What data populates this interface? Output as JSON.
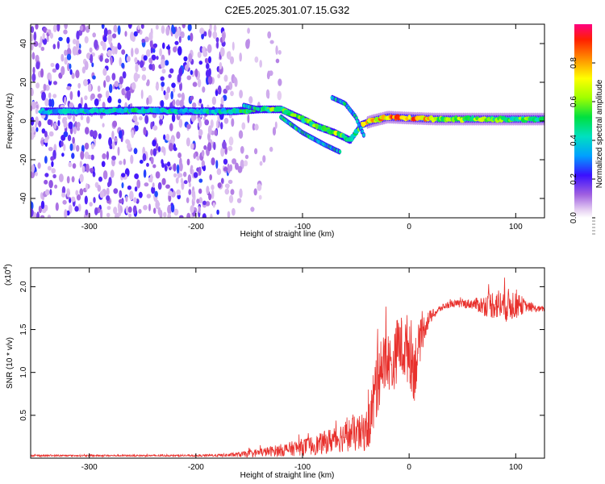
{
  "title": "C2E5.2025.301.07.15.G32",
  "chart_data": [
    {
      "type": "heatmap",
      "xlabel": "Height of straight line (km)",
      "ylabel": "Frequency (Hz)",
      "xlim": [
        -355,
        127
      ],
      "ylim": [
        -50,
        50
      ],
      "xticks": [
        -300,
        -200,
        -100,
        0,
        100
      ],
      "yticks": [
        -40,
        -20,
        0,
        20,
        40
      ],
      "colorbar": {
        "label": "Normalized spectral amplitude",
        "range": [
          0,
          1
        ],
        "ticks": [
          "0.0",
          "0.2",
          "0.4",
          "0.6",
          "0.8"
        ],
        "tick_values": [
          0.0,
          0.2,
          0.4,
          0.6,
          0.8
        ]
      },
      "dominant_track": [
        {
          "x": -345,
          "y": 5,
          "amp": 0.35
        },
        {
          "x": -300,
          "y": 5,
          "amp": 0.38
        },
        {
          "x": -250,
          "y": 5.5,
          "amp": 0.42
        },
        {
          "x": -200,
          "y": 5,
          "amp": 0.38
        },
        {
          "x": -165,
          "y": 5,
          "amp": 0.4
        },
        {
          "x": -140,
          "y": 6,
          "amp": 0.55
        },
        {
          "x": -120,
          "y": 6,
          "amp": 0.5
        },
        {
          "x": -100,
          "y": 1,
          "amp": 0.5
        },
        {
          "x": -85,
          "y": -3,
          "amp": 0.55
        },
        {
          "x": -70,
          "y": -6,
          "amp": 0.6
        },
        {
          "x": -55,
          "y": -10,
          "amp": 0.45
        },
        {
          "x": -45,
          "y": -2,
          "amp": 0.55
        },
        {
          "x": -35,
          "y": 0,
          "amp": 0.75
        },
        {
          "x": -20,
          "y": 2,
          "amp": 0.8
        },
        {
          "x": 0,
          "y": 1.5,
          "amp": 0.85
        },
        {
          "x": 25,
          "y": 1,
          "amp": 0.6
        },
        {
          "x": 50,
          "y": 1,
          "amp": 0.55
        },
        {
          "x": 75,
          "y": 1,
          "amp": 0.55
        },
        {
          "x": 100,
          "y": 1,
          "amp": 0.5
        },
        {
          "x": 127,
          "y": 1,
          "amp": 0.55
        }
      ],
      "secondary_tracks": [
        [
          {
            "x": -120,
            "y": 2
          },
          {
            "x": -100,
            "y": -6
          },
          {
            "x": -80,
            "y": -12
          },
          {
            "x": -65,
            "y": -16
          }
        ],
        [
          {
            "x": -72,
            "y": 12
          },
          {
            "x": -60,
            "y": 9
          },
          {
            "x": -50,
            "y": 2
          },
          {
            "x": -42,
            "y": -8
          }
        ],
        [
          {
            "x": -155,
            "y": 8
          },
          {
            "x": -140,
            "y": 6
          }
        ]
      ]
    },
    {
      "type": "line",
      "xlabel": "Height of straight line (km)",
      "ylabel": "SNR (10 * v/v)",
      "yexp_label": "(x10",
      "yexp_power": "4",
      "yexp_close": ")",
      "xlim": [
        -355,
        127
      ],
      "ylim": [
        0,
        2.22
      ],
      "xticks": [
        -300,
        -200,
        -100,
        0,
        100
      ],
      "yticks": [
        0.5,
        1.0,
        1.5,
        2.0
      ],
      "ytick_labels": [
        "0.5",
        "1.0",
        "1.5",
        "2.0"
      ],
      "color": "#e8302c",
      "series": [
        {
          "x": [
            -355,
            -300,
            -250,
            -200,
            -170,
            -150,
            -130,
            -115,
            -100,
            -85,
            -70,
            -55,
            -45,
            -38,
            -32,
            -28,
            -25,
            -20,
            -15,
            -10,
            -5,
            0,
            5,
            10,
            15,
            20,
            25,
            30,
            35,
            40,
            50,
            60,
            70,
            80,
            90,
            100,
            110,
            120,
            127
          ],
          "y": [
            0.03,
            0.03,
            0.03,
            0.03,
            0.035,
            0.05,
            0.08,
            0.1,
            0.13,
            0.16,
            0.22,
            0.28,
            0.28,
            0.35,
            0.75,
            1.15,
            1.05,
            1.15,
            1.05,
            1.35,
            1.25,
            1.3,
            1.05,
            1.35,
            1.55,
            1.65,
            1.7,
            1.75,
            1.78,
            1.8,
            1.8,
            1.8,
            1.78,
            1.8,
            1.78,
            1.8,
            1.77,
            1.74,
            1.74
          ],
          "noise": [
            0.01,
            0.01,
            0.01,
            0.01,
            0.02,
            0.04,
            0.06,
            0.08,
            0.1,
            0.12,
            0.16,
            0.2,
            0.22,
            0.25,
            0.45,
            0.55,
            0.4,
            0.35,
            0.3,
            0.4,
            0.35,
            0.45,
            0.4,
            0.25,
            0.15,
            0.08,
            0.05,
            0.04,
            0.04,
            0.04,
            0.05,
            0.06,
            0.12,
            0.18,
            0.2,
            0.18,
            0.06,
            0.04,
            0.03
          ]
        }
      ]
    }
  ]
}
